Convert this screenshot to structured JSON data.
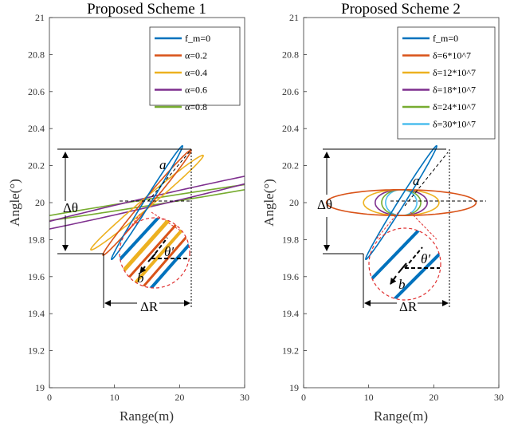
{
  "chart_data": [
    {
      "type": "line",
      "title": "Proposed Scheme 1",
      "xlabel": "Range(m)",
      "ylabel": "Angle(°)",
      "xlim": [
        0,
        30
      ],
      "ylim": [
        19,
        21
      ],
      "xticks": [
        "0",
        "10",
        "20",
        "30"
      ],
      "yticks": [
        "19",
        "19.2",
        "19.4",
        "19.6",
        "19.8",
        "20",
        "20.2",
        "20.4",
        "20.6",
        "20.8",
        "21"
      ],
      "grid": false,
      "legend_position": "top-right",
      "legend": [
        {
          "label": "f_m=0",
          "color": "#0072BD"
        },
        {
          "label": "α=0.2",
          "color": "#D95319"
        },
        {
          "label": "α=0.4",
          "color": "#EDB120"
        },
        {
          "label": "α=0.6",
          "color": "#7E2F8E"
        },
        {
          "label": "α=0.8",
          "color": "#77AC30"
        }
      ],
      "series": [
        {
          "name": "f_m=0",
          "shape": "ellipse",
          "center": [
            15,
            20.0
          ],
          "color": "#0072BD"
        },
        {
          "name": "α=0.2",
          "shape": "ellipse",
          "center": [
            15,
            20.0
          ],
          "color": "#D95319"
        },
        {
          "name": "α=0.4",
          "shape": "ellipse",
          "center": [
            15,
            20.0
          ],
          "color": "#EDB120"
        },
        {
          "name": "α=0.6",
          "shape": "ellipse",
          "center": [
            15,
            20.0
          ],
          "color": "#7E2F8E"
        },
        {
          "name": "α=0.8",
          "shape": "ellipse",
          "center": [
            15,
            20.0
          ],
          "color": "#77AC30"
        }
      ],
      "annotations": {
        "delta_theta": "Δθ",
        "delta_r": "ΔR",
        "a": "a",
        "b": "b",
        "theta_prime": "θ′",
        "angle_top": 20.28,
        "angle_bottom": 19.72,
        "range_left": 8.3,
        "range_right": 21.7
      }
    },
    {
      "type": "line",
      "title": "Proposed Scheme 2",
      "xlabel": "Range(m)",
      "ylabel": "Angle(°)",
      "xlim": [
        0,
        30
      ],
      "ylim": [
        19,
        21
      ],
      "xticks": [
        "0",
        "10",
        "20",
        "30"
      ],
      "yticks": [
        "19",
        "19.2",
        "19.4",
        "19.6",
        "19.8",
        "20",
        "20.2",
        "20.4",
        "20.6",
        "20.8",
        "21"
      ],
      "grid": false,
      "legend_position": "top-right",
      "legend": [
        {
          "label": "f_m=0",
          "color": "#0072BD"
        },
        {
          "label": "δ=6*10^7",
          "color": "#D95319"
        },
        {
          "label": "δ=12*10^7",
          "color": "#EDB120"
        },
        {
          "label": "δ=18*10^7",
          "color": "#7E2F8E"
        },
        {
          "label": "δ=24*10^7",
          "color": "#77AC30"
        },
        {
          "label": "δ=30*10^7",
          "color": "#4DBEEE"
        }
      ],
      "series": [
        {
          "name": "f_m=0",
          "shape": "ellipse",
          "center": [
            15,
            20.0
          ],
          "color": "#0072BD"
        },
        {
          "name": "δ=6*10^7",
          "shape": "ellipse",
          "center": [
            15,
            20.0
          ],
          "x_half_width": 11.5,
          "y_half_height": 0.07,
          "color": "#D95319"
        },
        {
          "name": "δ=12*10^7",
          "shape": "ellipse",
          "center": [
            15,
            20.0
          ],
          "x_half_width": 5.8,
          "y_half_height": 0.07,
          "color": "#EDB120"
        },
        {
          "name": "δ=18*10^7",
          "shape": "ellipse",
          "center": [
            15,
            20.0
          ],
          "x_half_width": 4.0,
          "y_half_height": 0.07,
          "color": "#7E2F8E"
        },
        {
          "name": "δ=24*10^7",
          "shape": "ellipse",
          "center": [
            15,
            20.0
          ],
          "x_half_width": 3.0,
          "y_half_height": 0.07,
          "color": "#77AC30"
        },
        {
          "name": "δ=30*10^7",
          "shape": "ellipse",
          "center": [
            15,
            20.0
          ],
          "x_half_width": 2.4,
          "y_half_height": 0.07,
          "color": "#4DBEEE"
        }
      ],
      "annotations": {
        "delta_theta": "Δθ",
        "delta_r": "ΔR",
        "a": "a",
        "b": "b",
        "theta_prime": "θ′",
        "angle_top": 20.28,
        "angle_bottom": 19.72,
        "range_left": 8.3,
        "range_right": 21.7
      }
    }
  ]
}
